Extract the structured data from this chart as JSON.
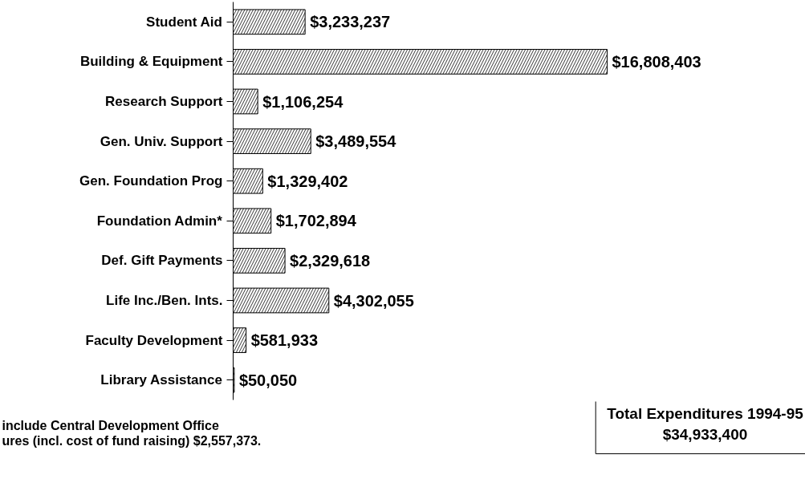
{
  "chart_data": {
    "type": "bar",
    "orientation": "horizontal",
    "categories": [
      "Student Aid",
      "Building & Equipment",
      "Research Support",
      "Gen. Univ. Support",
      "Gen. Foundation Prog",
      "Foundation Admin*",
      "Def. Gift Payments",
      "Life Inc./Ben. Ints.",
      "Faculty Development",
      "Library Assistance"
    ],
    "values": [
      3233237,
      16808403,
      1106254,
      3489554,
      1329402,
      1702894,
      2329618,
      4302055,
      581933,
      50050
    ],
    "value_labels": [
      "$3,233,237",
      "$16,808,403",
      "$1,106,254",
      "$3,489,554",
      "$1,329,402",
      "$1,702,894",
      "$2,329,618",
      "$4,302,055",
      "$581,933",
      "$50,050"
    ],
    "color": "#000000",
    "tick_labels": "y",
    "grid": false,
    "annotations": [
      "include Central Development Office",
      "ures (incl. cost of fund raising) $2,557,373.",
      "Total Expenditures 1994-95\n$34,933,400"
    ]
  }
}
